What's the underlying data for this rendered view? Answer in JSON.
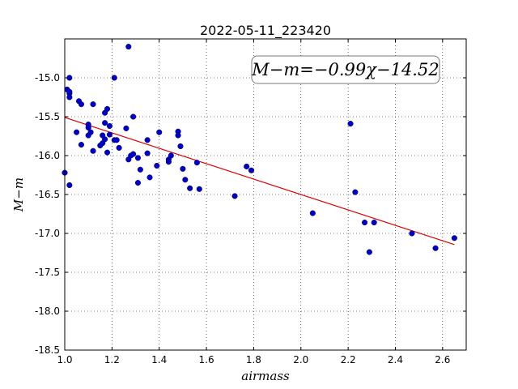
{
  "chart_data": {
    "type": "scatter",
    "title": "2022-05-11_223420",
    "xlabel": "airmass",
    "ylabel": "M−m",
    "xlim": [
      1.0,
      2.7
    ],
    "ylim": [
      -18.5,
      -14.5
    ],
    "y_inverted": true,
    "x_ticks": [
      1.0,
      1.2,
      1.4,
      1.6,
      1.8,
      2.0,
      2.2,
      2.4,
      2.6
    ],
    "x_tick_labels": [
      "1.0",
      "1.2",
      "1.4",
      "1.6",
      "1.8",
      "2.0",
      "2.2",
      "2.4",
      "2.6"
    ],
    "y_ticks": [
      -15.0,
      -15.5,
      -16.0,
      -16.5,
      -17.0,
      -17.5,
      -18.0,
      -18.5
    ],
    "y_tick_labels": [
      "-15.0",
      "-15.5",
      "-16.0",
      "-16.5",
      "-17.0",
      "-17.5",
      "-18.0",
      "-18.5"
    ],
    "grid": true,
    "annotation": "M−m=−0.99χ−14.52",
    "marker_color": "#0000cc",
    "fit_color": "#dd0000",
    "fit": {
      "slope": -0.99,
      "intercept": -14.52
    },
    "points": [
      [
        1.0,
        -16.22
      ],
      [
        1.01,
        -15.15
      ],
      [
        1.02,
        -15.0
      ],
      [
        1.02,
        -15.2
      ],
      [
        1.02,
        -15.25
      ],
      [
        1.02,
        -15.18
      ],
      [
        1.02,
        -16.38
      ],
      [
        1.05,
        -15.7
      ],
      [
        1.06,
        -15.3
      ],
      [
        1.07,
        -15.34
      ],
      [
        1.07,
        -15.86
      ],
      [
        1.1,
        -15.6
      ],
      [
        1.1,
        -15.64
      ],
      [
        1.1,
        -15.74
      ],
      [
        1.11,
        -15.7
      ],
      [
        1.12,
        -15.94
      ],
      [
        1.12,
        -15.34
      ],
      [
        1.15,
        -15.87
      ],
      [
        1.16,
        -15.74
      ],
      [
        1.16,
        -15.84
      ],
      [
        1.17,
        -15.45
      ],
      [
        1.17,
        -15.58
      ],
      [
        1.17,
        -15.79
      ],
      [
        1.18,
        -15.96
      ],
      [
        1.18,
        -15.4
      ],
      [
        1.19,
        -15.62
      ],
      [
        1.19,
        -15.73
      ],
      [
        1.21,
        -15.0
      ],
      [
        1.21,
        -15.8
      ],
      [
        1.22,
        -15.8
      ],
      [
        1.23,
        -15.9
      ],
      [
        1.26,
        -15.65
      ],
      [
        1.27,
        -14.6
      ],
      [
        1.27,
        -16.05
      ],
      [
        1.28,
        -16.0
      ],
      [
        1.29,
        -15.5
      ],
      [
        1.29,
        -15.98
      ],
      [
        1.31,
        -16.35
      ],
      [
        1.31,
        -16.03
      ],
      [
        1.32,
        -16.18
      ],
      [
        1.35,
        -15.97
      ],
      [
        1.35,
        -15.8
      ],
      [
        1.36,
        -16.28
      ],
      [
        1.39,
        -16.13
      ],
      [
        1.4,
        -15.7
      ],
      [
        1.44,
        -16.05
      ],
      [
        1.44,
        -16.08
      ],
      [
        1.45,
        -16.0
      ],
      [
        1.48,
        -15.69
      ],
      [
        1.48,
        -15.74
      ],
      [
        1.49,
        -15.88
      ],
      [
        1.5,
        -16.17
      ],
      [
        1.51,
        -16.31
      ],
      [
        1.53,
        -16.42
      ],
      [
        1.56,
        -16.09
      ],
      [
        1.57,
        -16.43
      ],
      [
        1.72,
        -16.52
      ],
      [
        1.77,
        -16.14
      ],
      [
        1.79,
        -16.19
      ],
      [
        2.05,
        -16.74
      ],
      [
        2.21,
        -15.59
      ],
      [
        2.23,
        -16.47
      ],
      [
        2.27,
        -16.86
      ],
      [
        2.29,
        -17.24
      ],
      [
        2.31,
        -16.86
      ],
      [
        2.47,
        -17.0
      ],
      [
        2.57,
        -17.19
      ],
      [
        2.65,
        -17.06
      ]
    ]
  }
}
